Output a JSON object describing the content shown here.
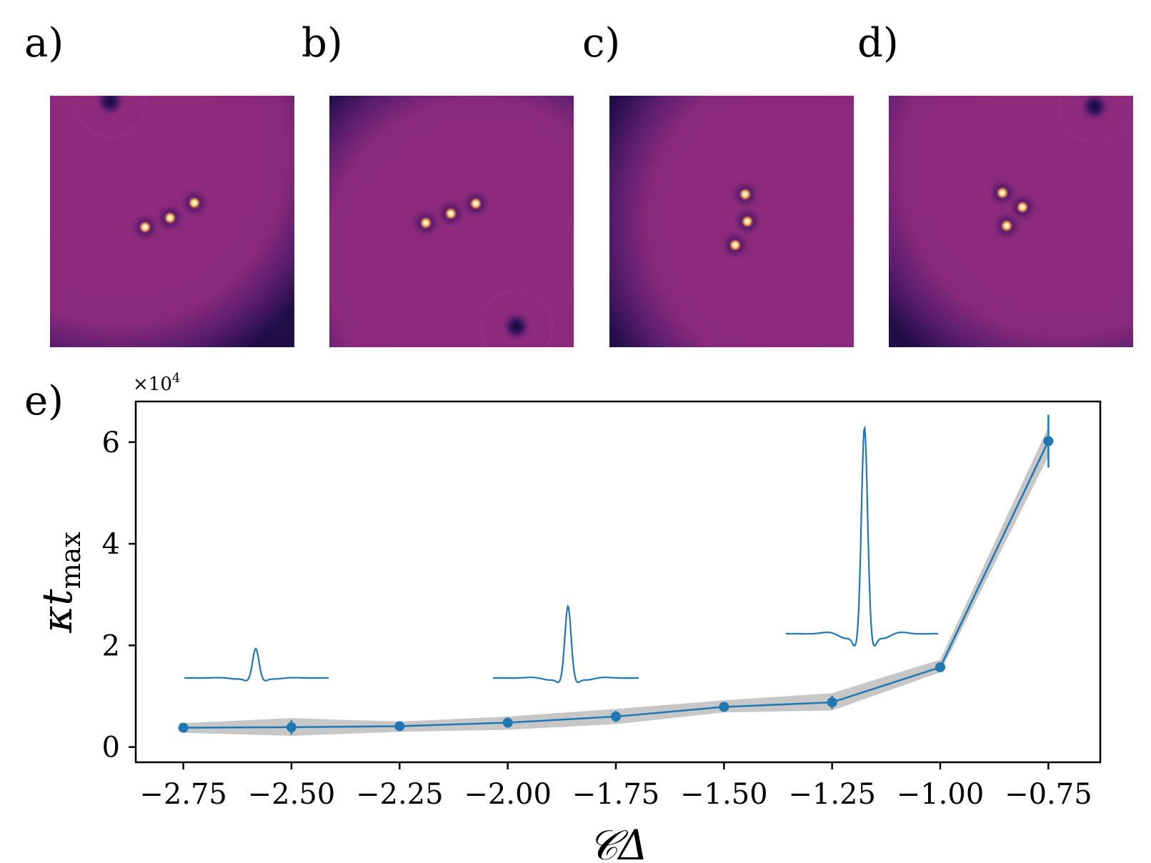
{
  "panels": [
    {
      "label": "a)",
      "background_dark_corner": "bottom-right",
      "peaks": 3,
      "vortex": "top-left"
    },
    {
      "label": "b)",
      "background_dark_corner": "top-left",
      "peaks": 3,
      "vortex": "bottom-right"
    },
    {
      "label": "c)",
      "background_dark_corner": "left",
      "peaks": 3,
      "vortex": "none"
    },
    {
      "label": "d)",
      "background_dark_corner": "bottom-left",
      "peaks": 3,
      "vortex": "top-right"
    }
  ],
  "colors": {
    "field_base": "#8e2a7c",
    "field_dark": "#1f0d47",
    "peak_core": "#fff4c6",
    "peak_glow": "#f7a34d",
    "line": "#1f77b4",
    "band": "#b4b4b4"
  },
  "chart_data": {
    "type": "line",
    "panel_label": "e)",
    "title": "",
    "xlabel": "𝒞Δ",
    "ylabel": "κt",
    "ylabel_subscript": "max",
    "y_multiplier": "×10",
    "y_multiplier_exp": "4",
    "xlim": [
      -2.86,
      -0.63
    ],
    "ylim": [
      -0.3,
      6.8
    ],
    "x_ticks": [
      -2.75,
      -2.5,
      -2.25,
      -2.0,
      -1.75,
      -1.5,
      -1.25,
      -1.0,
      -0.75
    ],
    "x_tick_labels": [
      "−2.75",
      "−2.50",
      "−2.25",
      "−2.00",
      "−1.75",
      "−1.50",
      "−1.25",
      "−1.00",
      "−0.75"
    ],
    "y_ticks": [
      0,
      2,
      4,
      6
    ],
    "y_tick_labels": [
      "0",
      "2",
      "4",
      "6"
    ],
    "series": [
      {
        "name": "κt_max",
        "x": [
          -2.75,
          -2.5,
          -2.25,
          -2.0,
          -1.75,
          -1.5,
          -1.25,
          -1.0,
          -0.75
        ],
        "y": [
          0.38,
          0.39,
          0.41,
          0.48,
          0.6,
          0.79,
          0.88,
          1.57,
          6.02
        ],
        "err": [
          0.03,
          0.14,
          0.05,
          0.06,
          0.11,
          0.07,
          0.13,
          0.08,
          0.52
        ],
        "band_low": [
          0.28,
          0.22,
          0.3,
          0.34,
          0.45,
          0.68,
          0.72,
          1.47,
          5.72
        ],
        "band_high": [
          0.47,
          0.57,
          0.5,
          0.6,
          0.75,
          0.92,
          1.06,
          1.72,
          6.3
        ]
      }
    ],
    "insets": [
      {
        "name": "inset-profile-1",
        "peak": 0.62
      },
      {
        "name": "inset-profile-2",
        "peak": 0.82
      },
      {
        "name": "inset-profile-3",
        "peak": 1.0
      }
    ]
  }
}
